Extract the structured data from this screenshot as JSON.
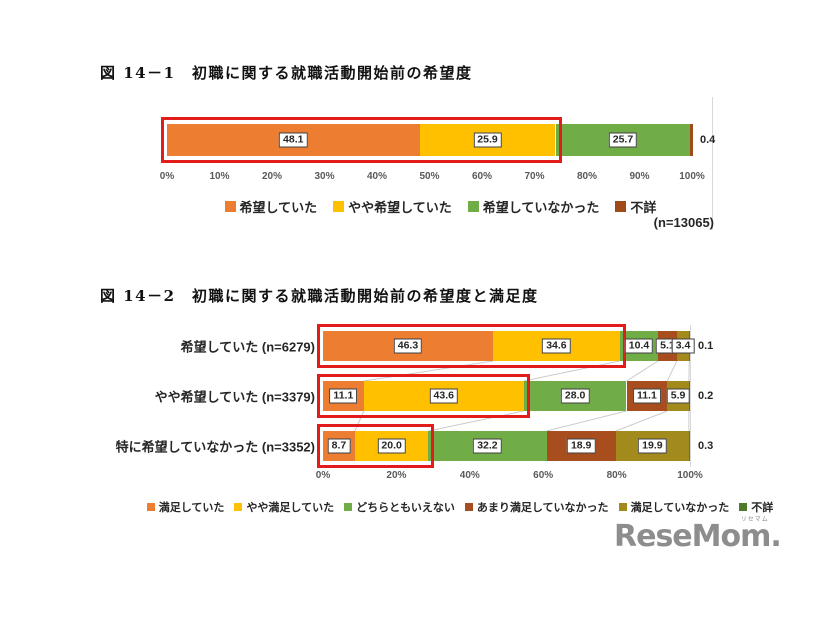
{
  "figure1_title": "図 14－1　初職に関する就職活動開始前の希望度",
  "figure2_title": "図 14－2　初職に関する就職活動開始前の希望度と満足度",
  "chart_data": [
    {
      "type": "bar",
      "stacked": true,
      "orientation": "horizontal",
      "title": "図 14－1　初職に関する就職活動開始前の希望度",
      "n_label": "(n=13065)",
      "xlim": [
        0,
        100
      ],
      "x_ticks": [
        "0%",
        "10%",
        "20%",
        "30%",
        "40%",
        "50%",
        "60%",
        "70%",
        "80%",
        "90%",
        "100%"
      ],
      "categories": [
        ""
      ],
      "series": [
        {
          "name": "希望していた",
          "color": "#ED7D31",
          "values": [
            48.1
          ]
        },
        {
          "name": "やや希望していた",
          "color": "#FFC000",
          "values": [
            25.9
          ]
        },
        {
          "name": "希望していなかった",
          "color": "#70AD47",
          "values": [
            25.7
          ]
        },
        {
          "name": "不詳",
          "color": "#A04A1A",
          "values": [
            0.4
          ]
        }
      ],
      "outside_label_series": 3,
      "value_decimals": 1,
      "legend_position": "bottom",
      "highlight": {
        "color": "#E21B1B",
        "series_indices": [
          0,
          1
        ]
      }
    },
    {
      "type": "bar",
      "stacked": true,
      "orientation": "horizontal",
      "title": "図 14－2　初職に関する就職活動開始前の希望度と満足度",
      "xlim": [
        0,
        100
      ],
      "x_ticks": [
        "0%",
        "20%",
        "40%",
        "60%",
        "80%",
        "100%"
      ],
      "categories": [
        "希望していた (n=6279)",
        "やや希望していた (n=3379)",
        "特に希望していなかった (n=3352)"
      ],
      "series": [
        {
          "name": "満足していた",
          "color": "#ED7D31",
          "values": [
            46.3,
            11.1,
            8.7
          ]
        },
        {
          "name": "やや満足していた",
          "color": "#FFC000",
          "values": [
            34.6,
            43.6,
            20.0
          ]
        },
        {
          "name": "どちらともいえない",
          "color": "#70AD47",
          "values": [
            10.4,
            28.0,
            32.2
          ]
        },
        {
          "name": "あまり満足していなかった",
          "color": "#A84E1E",
          "values": [
            5.1,
            11.1,
            18.9
          ]
        },
        {
          "name": "満足していなかった",
          "color": "#A38A1D",
          "values": [
            3.4,
            5.9,
            19.9
          ]
        },
        {
          "name": "不詳",
          "color": "#4E7B2B",
          "values": [
            0.1,
            0.2,
            0.3
          ]
        }
      ],
      "outside_label_series": 5,
      "value_decimals": 1,
      "legend_position": "bottom",
      "highlight": {
        "color": "#E21B1B",
        "series_indices": [
          0,
          1
        ]
      },
      "connector_lines": true
    }
  ],
  "style_colors": {
    "gridline": "#D9D9D9",
    "connector": "#CCCCCC",
    "tick_text": "#595959",
    "label_border": "#404040",
    "highlight_red": "#E21B1B"
  },
  "logo": {
    "text": "ReseMom.",
    "ruby": "リセマム",
    "color": "#8D8D8D"
  }
}
